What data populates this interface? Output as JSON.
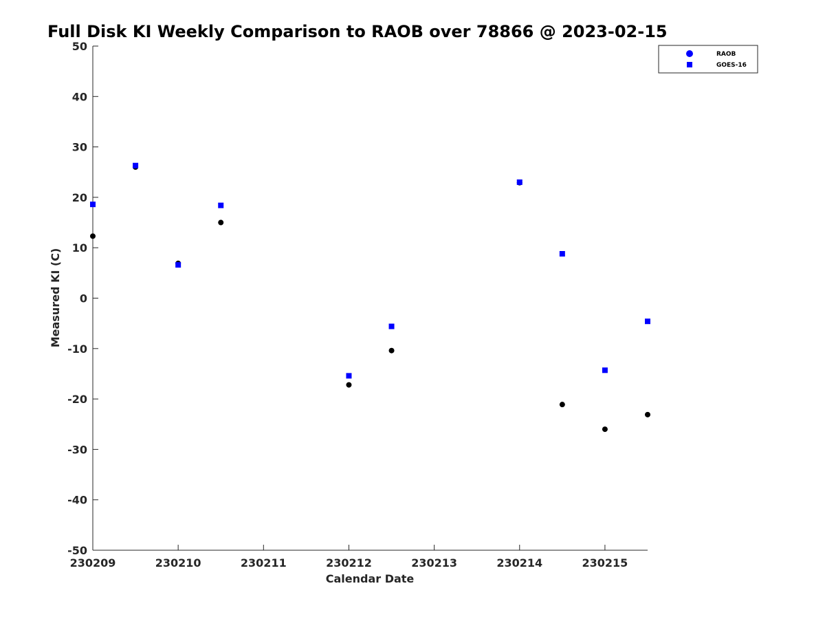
{
  "chart_data": {
    "type": "scatter",
    "title": "Full Disk KI Weekly Comparison to RAOB over 78866 @ 2023-02-15",
    "xlabel": "Calendar Date",
    "ylabel": "Measured KI (C)",
    "xlim": [
      0,
      6.5
    ],
    "ylim": [
      -50,
      50
    ],
    "x_ticks": [
      {
        "value": 0,
        "label": "230209"
      },
      {
        "value": 1,
        "label": "230210"
      },
      {
        "value": 2,
        "label": "230211"
      },
      {
        "value": 3,
        "label": "230212"
      },
      {
        "value": 4,
        "label": "230213"
      },
      {
        "value": 5,
        "label": "230214"
      },
      {
        "value": 6,
        "label": "230215"
      }
    ],
    "y_ticks": [
      50,
      40,
      30,
      20,
      10,
      0,
      -10,
      -20,
      -30,
      -40,
      -50
    ],
    "grid": false,
    "legend_position": "top-right",
    "series": [
      {
        "name": "RAOB",
        "marker": "circle",
        "color": "#000000",
        "legend_color": "#0000ff",
        "points": [
          {
            "x": 0.0,
            "y": 12.3
          },
          {
            "x": 0.5,
            "y": 26.0
          },
          {
            "x": 1.0,
            "y": 6.9
          },
          {
            "x": 1.5,
            "y": 15.0
          },
          {
            "x": 3.0,
            "y": -17.2
          },
          {
            "x": 3.5,
            "y": -10.4
          },
          {
            "x": 5.0,
            "y": 22.9
          },
          {
            "x": 5.5,
            "y": -21.1
          },
          {
            "x": 6.0,
            "y": -26.0
          },
          {
            "x": 6.5,
            "y": -23.1
          }
        ]
      },
      {
        "name": "GOES-16",
        "marker": "square",
        "color": "#0000ff",
        "legend_color": "#0000ff",
        "points": [
          {
            "x": 0.0,
            "y": 18.6
          },
          {
            "x": 0.5,
            "y": 26.3
          },
          {
            "x": 1.0,
            "y": 6.6
          },
          {
            "x": 1.5,
            "y": 18.4
          },
          {
            "x": 3.0,
            "y": -15.4
          },
          {
            "x": 3.5,
            "y": -5.6
          },
          {
            "x": 5.0,
            "y": 23.0
          },
          {
            "x": 5.5,
            "y": 8.8
          },
          {
            "x": 6.0,
            "y": -14.3
          },
          {
            "x": 6.5,
            "y": -4.6
          }
        ]
      }
    ]
  }
}
